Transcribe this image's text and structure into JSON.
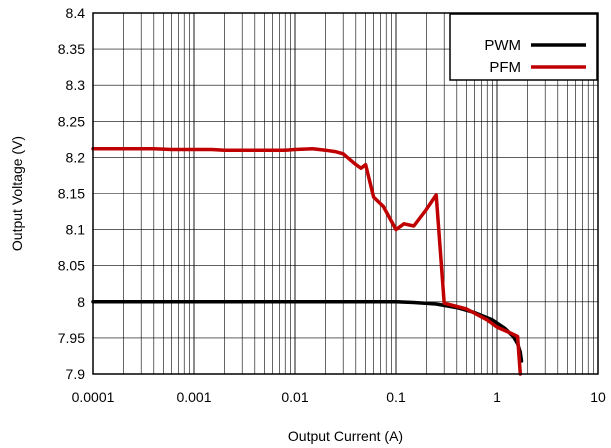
{
  "chart_data": {
    "type": "line",
    "title": "",
    "xlabel": "Output Current (A)",
    "ylabel": "Output Voltage (V)",
    "xscale": "log",
    "xlim": [
      0.0001,
      10
    ],
    "ylim": [
      7.9,
      8.4
    ],
    "grid": true,
    "legend_position": "top-right",
    "x_ticks": [
      {
        "value": 0.0001,
        "label": "0.0001"
      },
      {
        "value": 0.001,
        "label": "0.001"
      },
      {
        "value": 0.01,
        "label": "0.01"
      },
      {
        "value": 0.1,
        "label": "0.1"
      },
      {
        "value": 1,
        "label": "1"
      },
      {
        "value": 10,
        "label": "10"
      }
    ],
    "y_ticks": [
      {
        "value": 7.9,
        "label": "7.9"
      },
      {
        "value": 7.95,
        "label": "7.95"
      },
      {
        "value": 8.0,
        "label": "8"
      },
      {
        "value": 8.05,
        "label": "8.05"
      },
      {
        "value": 8.1,
        "label": "8.1"
      },
      {
        "value": 8.15,
        "label": "8.15"
      },
      {
        "value": 8.2,
        "label": "8.2"
      },
      {
        "value": 8.25,
        "label": "8.25"
      },
      {
        "value": 8.3,
        "label": "8.3"
      },
      {
        "value": 8.35,
        "label": "8.35"
      },
      {
        "value": 8.4,
        "label": "8.4"
      }
    ],
    "series": [
      {
        "name": "PWM",
        "color": "#000000",
        "x": [
          0.0001,
          0.001,
          0.01,
          0.1,
          0.15,
          0.25,
          0.4,
          0.6,
          0.9,
          1.2,
          1.45,
          1.6,
          1.7,
          1.75
        ],
        "values": [
          8.0,
          8.0,
          8.0,
          8.0,
          7.999,
          7.997,
          7.992,
          7.985,
          7.975,
          7.963,
          7.952,
          7.942,
          7.93,
          7.918
        ]
      },
      {
        "name": "PFM",
        "color": "#c00000",
        "x": [
          0.0001,
          0.0004,
          0.0006,
          0.0015,
          0.002,
          0.005,
          0.008,
          0.01,
          0.015,
          0.02,
          0.025,
          0.03,
          0.04,
          0.045,
          0.05,
          0.06,
          0.075,
          0.1,
          0.12,
          0.15,
          0.2,
          0.25,
          0.3,
          0.5,
          0.8,
          1.0,
          1.3,
          1.6,
          1.7
        ],
        "values": [
          8.212,
          8.212,
          8.211,
          8.211,
          8.21,
          8.21,
          8.21,
          8.211,
          8.212,
          8.21,
          8.208,
          8.205,
          8.19,
          8.185,
          8.19,
          8.145,
          8.132,
          8.1,
          8.108,
          8.105,
          8.128,
          8.148,
          7.998,
          7.99,
          7.975,
          7.965,
          7.958,
          7.952,
          7.9
        ]
      }
    ]
  }
}
